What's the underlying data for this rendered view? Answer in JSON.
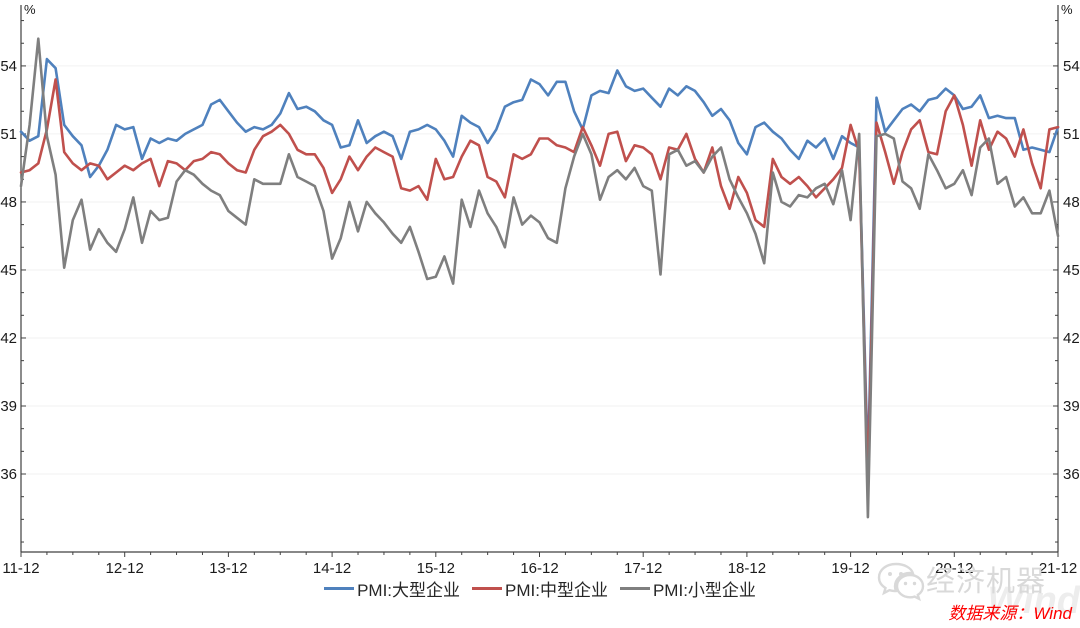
{
  "chart_data": {
    "type": "line",
    "unit_left": "%",
    "unit_right": "%",
    "x_start": "2011-12",
    "x_end": "2021-12",
    "x_tick_labels": [
      "11-12",
      "12-12",
      "13-12",
      "14-12",
      "15-12",
      "16-12",
      "17-12",
      "18-12",
      "19-12",
      "20-12",
      "21-12"
    ],
    "x_minor_every_months": 3,
    "y_major_ticks": [
      36,
      39,
      42,
      45,
      48,
      51,
      54
    ],
    "y_minor_step": 1,
    "ylim": [
      32.56,
      56.29
    ],
    "grid": "horizontal-major-faint",
    "legend_position": "bottom-center",
    "axis_color": "#404040",
    "grid_color": "#f2f2f2",
    "series": [
      {
        "name": "PMI:大型企业",
        "color": "#4f81bd",
        "values": [
          51.1,
          50.7,
          50.9,
          54.3,
          53.9,
          51.4,
          50.9,
          50.5,
          49.1,
          49.6,
          50.3,
          51.4,
          51.2,
          51.3,
          49.9,
          50.8,
          50.6,
          50.8,
          50.7,
          51.0,
          51.2,
          51.4,
          52.3,
          52.5,
          52.0,
          51.5,
          51.1,
          51.3,
          51.2,
          51.4,
          51.9,
          52.8,
          52.1,
          52.2,
          52.0,
          51.6,
          51.4,
          50.4,
          50.5,
          51.6,
          50.6,
          50.9,
          51.1,
          50.9,
          49.9,
          51.1,
          51.2,
          51.4,
          51.2,
          50.7,
          50.0,
          51.8,
          51.5,
          51.3,
          50.6,
          51.2,
          52.2,
          52.4,
          52.5,
          53.4,
          53.2,
          52.7,
          53.3,
          53.3,
          52.0,
          51.2,
          52.7,
          52.9,
          52.8,
          53.8,
          53.1,
          52.9,
          53.0,
          52.6,
          52.2,
          53.0,
          52.7,
          53.1,
          52.9,
          52.4,
          51.8,
          52.1,
          51.6,
          50.6,
          50.1,
          51.3,
          51.5,
          51.1,
          50.8,
          50.3,
          49.9,
          50.7,
          50.4,
          50.8,
          49.9,
          50.9,
          50.6,
          50.4,
          36.3,
          52.6,
          51.1,
          51.6,
          52.1,
          52.3,
          52.0,
          52.5,
          52.6,
          53.0,
          52.7,
          52.1,
          52.2,
          52.7,
          51.7,
          51.8,
          51.7,
          51.7,
          50.3,
          50.4,
          50.3,
          50.2,
          51.3
        ]
      },
      {
        "name": "PMI:中型企业",
        "color": "#c0504d",
        "values": [
          49.3,
          49.4,
          49.7,
          51.2,
          53.4,
          50.2,
          49.7,
          49.4,
          49.7,
          49.6,
          49.0,
          49.3,
          49.6,
          49.4,
          49.7,
          49.9,
          48.7,
          49.8,
          49.7,
          49.4,
          49.8,
          49.9,
          50.2,
          50.1,
          49.7,
          49.4,
          49.3,
          50.3,
          50.9,
          51.1,
          51.4,
          51.0,
          50.3,
          50.1,
          50.1,
          49.5,
          48.4,
          49.0,
          50.0,
          49.4,
          50.0,
          50.4,
          50.2,
          50.0,
          48.6,
          48.5,
          48.7,
          48.1,
          49.9,
          49.0,
          49.1,
          50.0,
          50.7,
          50.5,
          49.1,
          48.9,
          48.2,
          50.1,
          49.9,
          50.1,
          50.8,
          50.8,
          50.5,
          50.4,
          50.2,
          51.3,
          50.5,
          49.6,
          51.0,
          51.1,
          49.8,
          50.5,
          50.4,
          50.1,
          49.0,
          50.4,
          50.3,
          51.0,
          49.9,
          49.3,
          50.4,
          48.7,
          47.7,
          49.1,
          48.4,
          47.2,
          46.9,
          49.9,
          49.1,
          48.8,
          49.1,
          48.7,
          48.2,
          48.6,
          49.0,
          49.5,
          51.4,
          50.2,
          35.5,
          51.5,
          50.2,
          48.8,
          50.2,
          51.2,
          51.6,
          50.2,
          50.1,
          52.0,
          52.7,
          51.4,
          49.6,
          51.6,
          50.3,
          51.1,
          50.8,
          50.0,
          51.2,
          49.7,
          48.6,
          51.2,
          51.3
        ]
      },
      {
        "name": "PMI:小型企业",
        "color": "#7f7f7f",
        "values": [
          48.7,
          51.4,
          55.2,
          50.9,
          49.2,
          45.1,
          47.2,
          48.1,
          45.9,
          46.8,
          46.2,
          45.8,
          46.8,
          48.2,
          46.2,
          47.6,
          47.2,
          47.3,
          48.9,
          49.4,
          49.2,
          48.8,
          48.5,
          48.3,
          47.6,
          47.3,
          47.0,
          49.0,
          48.8,
          48.8,
          48.8,
          50.1,
          49.1,
          48.9,
          48.7,
          47.6,
          45.5,
          46.4,
          48.0,
          46.7,
          48.0,
          47.5,
          47.1,
          46.6,
          46.2,
          46.9,
          45.8,
          44.6,
          44.7,
          45.6,
          44.4,
          48.1,
          46.9,
          48.5,
          47.5,
          46.9,
          46.0,
          48.2,
          47.0,
          47.4,
          47.1,
          46.4,
          46.2,
          48.6,
          50.0,
          51.0,
          50.1,
          48.1,
          49.1,
          49.4,
          49.0,
          49.5,
          48.7,
          48.5,
          44.8,
          50.1,
          50.3,
          49.6,
          49.8,
          49.3,
          50.0,
          50.4,
          49.0,
          48.2,
          47.5,
          46.6,
          45.3,
          49.3,
          48.0,
          47.8,
          48.3,
          48.2,
          48.6,
          48.8,
          47.9,
          49.4,
          47.2,
          51.0,
          34.1,
          50.9,
          51.0,
          50.8,
          48.9,
          48.6,
          47.7,
          50.1,
          49.4,
          48.6,
          48.8,
          49.4,
          48.3,
          50.4,
          50.8,
          48.8,
          49.1,
          47.8,
          48.2,
          47.5,
          47.5,
          48.5,
          46.5
        ]
      }
    ]
  },
  "legend": {
    "items": [
      "PMI:大型企业",
      "PMI:中型企业",
      "PMI:小型企业"
    ]
  },
  "watermark": {
    "brand": "经济机器",
    "ghost": "Wind"
  },
  "source": {
    "text": "数据来源：Wind"
  }
}
